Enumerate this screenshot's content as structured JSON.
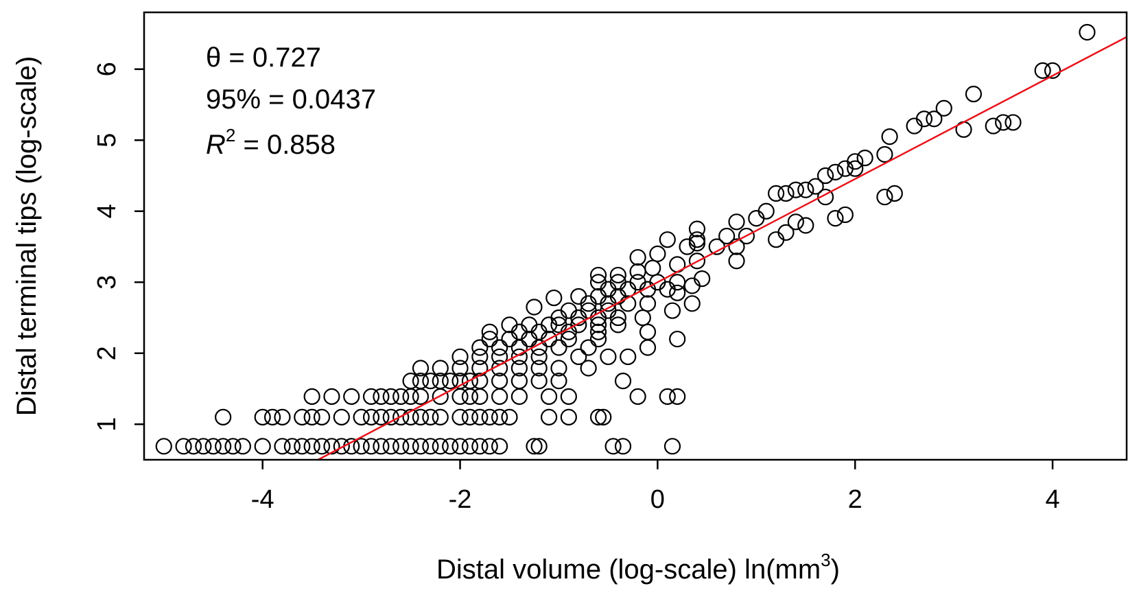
{
  "chart_data": {
    "type": "scatter",
    "title": "",
    "xlabel": "Distal volume (log-scale) ln(mm",
    "xlabel_sup": "3",
    "xlabel_close": ")",
    "ylabel": "Distal terminal tips (log-scale)",
    "xlim": [
      -5.2,
      4.75
    ],
    "ylim": [
      0.5,
      6.8
    ],
    "xticks": [
      -4,
      -2,
      0,
      2,
      4
    ],
    "yticks": [
      1,
      2,
      3,
      4,
      5,
      6
    ],
    "grid": false,
    "legend": "none",
    "annotations": {
      "theta_label": "θ = 0.727",
      "ci_label": "95% = 0.0437",
      "r2_symbol": "R",
      "r2_sup": "2",
      "r2_value": " = 0.858"
    },
    "fit_line": {
      "slope": 0.727,
      "intercept": 3.0,
      "color": "#e8141c"
    },
    "series": [
      {
        "marker": "open-circle",
        "points": [
          [
            -5.0,
            0.69
          ],
          [
            -4.8,
            0.69
          ],
          [
            -4.7,
            0.69
          ],
          [
            -4.6,
            0.69
          ],
          [
            -4.5,
            0.69
          ],
          [
            -4.4,
            0.69
          ],
          [
            -4.3,
            0.69
          ],
          [
            -4.2,
            0.69
          ],
          [
            -4.0,
            0.69
          ],
          [
            -3.8,
            0.69
          ],
          [
            -3.7,
            0.69
          ],
          [
            -3.6,
            0.69
          ],
          [
            -3.5,
            0.69
          ],
          [
            -3.4,
            0.69
          ],
          [
            -3.3,
            0.69
          ],
          [
            -3.2,
            0.69
          ],
          [
            -3.1,
            0.69
          ],
          [
            -3.0,
            0.69
          ],
          [
            -2.9,
            0.69
          ],
          [
            -2.8,
            0.69
          ],
          [
            -2.7,
            0.69
          ],
          [
            -2.6,
            0.69
          ],
          [
            -2.5,
            0.69
          ],
          [
            -2.4,
            0.69
          ],
          [
            -2.3,
            0.69
          ],
          [
            -2.2,
            0.69
          ],
          [
            -2.1,
            0.69
          ],
          [
            -2.0,
            0.69
          ],
          [
            -1.9,
            0.69
          ],
          [
            -1.8,
            0.69
          ],
          [
            -1.7,
            0.69
          ],
          [
            -1.6,
            0.69
          ],
          [
            -1.25,
            0.69
          ],
          [
            -1.2,
            0.69
          ],
          [
            -0.45,
            0.69
          ],
          [
            -0.35,
            0.69
          ],
          [
            0.15,
            0.69
          ],
          [
            -4.4,
            1.1
          ],
          [
            -4.0,
            1.1
          ],
          [
            -3.9,
            1.1
          ],
          [
            -3.8,
            1.1
          ],
          [
            -3.6,
            1.1
          ],
          [
            -3.5,
            1.1
          ],
          [
            -3.4,
            1.1
          ],
          [
            -3.2,
            1.1
          ],
          [
            -3.0,
            1.1
          ],
          [
            -2.9,
            1.1
          ],
          [
            -2.8,
            1.1
          ],
          [
            -2.7,
            1.1
          ],
          [
            -2.6,
            1.1
          ],
          [
            -2.5,
            1.1
          ],
          [
            -2.4,
            1.1
          ],
          [
            -2.3,
            1.1
          ],
          [
            -2.2,
            1.1
          ],
          [
            -2.0,
            1.1
          ],
          [
            -1.9,
            1.1
          ],
          [
            -1.8,
            1.1
          ],
          [
            -1.7,
            1.1
          ],
          [
            -1.6,
            1.1
          ],
          [
            -1.5,
            1.1
          ],
          [
            -1.1,
            1.1
          ],
          [
            -0.9,
            1.1
          ],
          [
            -0.6,
            1.1
          ],
          [
            -0.55,
            1.1
          ],
          [
            -3.5,
            1.39
          ],
          [
            -3.3,
            1.39
          ],
          [
            -3.1,
            1.39
          ],
          [
            -2.9,
            1.39
          ],
          [
            -2.8,
            1.39
          ],
          [
            -2.7,
            1.39
          ],
          [
            -2.6,
            1.39
          ],
          [
            -2.5,
            1.39
          ],
          [
            -2.4,
            1.39
          ],
          [
            -2.2,
            1.39
          ],
          [
            -2.0,
            1.39
          ],
          [
            -1.9,
            1.39
          ],
          [
            -1.8,
            1.39
          ],
          [
            -1.6,
            1.39
          ],
          [
            -1.4,
            1.39
          ],
          [
            -1.1,
            1.39
          ],
          [
            -0.9,
            1.39
          ],
          [
            -0.2,
            1.39
          ],
          [
            0.1,
            1.39
          ],
          [
            0.2,
            1.39
          ],
          [
            -2.5,
            1.61
          ],
          [
            -2.4,
            1.61
          ],
          [
            -2.3,
            1.61
          ],
          [
            -2.2,
            1.61
          ],
          [
            -2.1,
            1.61
          ],
          [
            -2.0,
            1.61
          ],
          [
            -1.9,
            1.61
          ],
          [
            -1.8,
            1.61
          ],
          [
            -1.6,
            1.61
          ],
          [
            -1.4,
            1.61
          ],
          [
            -1.2,
            1.61
          ],
          [
            -1.0,
            1.61
          ],
          [
            -0.35,
            1.61
          ],
          [
            -2.4,
            1.79
          ],
          [
            -2.2,
            1.79
          ],
          [
            -2.0,
            1.79
          ],
          [
            -1.8,
            1.79
          ],
          [
            -1.6,
            1.79
          ],
          [
            -1.4,
            1.79
          ],
          [
            -1.2,
            1.79
          ],
          [
            -1.0,
            1.79
          ],
          [
            -0.7,
            1.79
          ],
          [
            -2.0,
            1.95
          ],
          [
            -1.8,
            1.95
          ],
          [
            -1.6,
            1.95
          ],
          [
            -1.4,
            1.95
          ],
          [
            -1.2,
            1.95
          ],
          [
            -0.8,
            1.95
          ],
          [
            -0.5,
            1.95
          ],
          [
            -0.3,
            1.95
          ],
          [
            -1.8,
            2.08
          ],
          [
            -1.6,
            2.08
          ],
          [
            -1.4,
            2.08
          ],
          [
            -1.2,
            2.08
          ],
          [
            -1.0,
            2.08
          ],
          [
            -0.7,
            2.08
          ],
          [
            -0.1,
            2.08
          ],
          [
            -1.7,
            2.2
          ],
          [
            -1.5,
            2.2
          ],
          [
            -1.3,
            2.2
          ],
          [
            -1.1,
            2.2
          ],
          [
            -0.9,
            2.2
          ],
          [
            -0.6,
            2.2
          ],
          [
            0.2,
            2.2
          ],
          [
            -1.7,
            2.3
          ],
          [
            -1.4,
            2.3
          ],
          [
            -1.2,
            2.3
          ],
          [
            -0.9,
            2.3
          ],
          [
            -0.6,
            2.3
          ],
          [
            -0.1,
            2.3
          ],
          [
            -1.5,
            2.4
          ],
          [
            -1.3,
            2.4
          ],
          [
            -1.1,
            2.4
          ],
          [
            -1.0,
            2.4
          ],
          [
            -0.8,
            2.4
          ],
          [
            -0.6,
            2.4
          ],
          [
            -0.4,
            2.4
          ],
          [
            -1.0,
            2.5
          ],
          [
            -0.8,
            2.5
          ],
          [
            -0.6,
            2.5
          ],
          [
            -0.4,
            2.5
          ],
          [
            -0.15,
            2.5
          ],
          [
            -0.9,
            2.6
          ],
          [
            -0.7,
            2.6
          ],
          [
            -0.5,
            2.6
          ],
          [
            0.15,
            2.6
          ],
          [
            -1.25,
            2.65
          ],
          [
            -0.7,
            2.7
          ],
          [
            -0.5,
            2.7
          ],
          [
            -0.3,
            2.7
          ],
          [
            -0.1,
            2.7
          ],
          [
            0.35,
            2.7
          ],
          [
            -0.8,
            2.8
          ],
          [
            -0.6,
            2.8
          ],
          [
            -0.4,
            2.8
          ],
          [
            0.2,
            2.85
          ],
          [
            -1.05,
            2.78
          ],
          [
            -0.5,
            2.9
          ],
          [
            -0.3,
            2.9
          ],
          [
            -0.1,
            2.9
          ],
          [
            0.1,
            2.9
          ],
          [
            0.35,
            2.95
          ],
          [
            0.45,
            3.05
          ],
          [
            -0.6,
            3.0
          ],
          [
            -0.4,
            3.0
          ],
          [
            -0.2,
            3.0
          ],
          [
            0.0,
            3.0
          ],
          [
            0.2,
            3.0
          ],
          [
            -0.6,
            3.1
          ],
          [
            -0.4,
            3.1
          ],
          [
            -0.2,
            3.15
          ],
          [
            -0.05,
            3.2
          ],
          [
            0.2,
            3.25
          ],
          [
            0.4,
            3.3
          ],
          [
            -0.2,
            3.35
          ],
          [
            0.0,
            3.4
          ],
          [
            0.3,
            3.5
          ],
          [
            0.4,
            3.55
          ],
          [
            0.6,
            3.5
          ],
          [
            0.8,
            3.5
          ],
          [
            0.1,
            3.6
          ],
          [
            0.4,
            3.6
          ],
          [
            0.7,
            3.65
          ],
          [
            0.9,
            3.65
          ],
          [
            1.2,
            3.6
          ],
          [
            1.3,
            3.7
          ],
          [
            1.5,
            3.8
          ],
          [
            0.4,
            3.75
          ],
          [
            0.8,
            3.85
          ],
          [
            1.0,
            3.9
          ],
          [
            1.1,
            4.0
          ],
          [
            1.4,
            3.85
          ],
          [
            1.8,
            3.9
          ],
          [
            1.9,
            3.95
          ],
          [
            0.8,
            3.3
          ],
          [
            1.7,
            4.2
          ],
          [
            1.2,
            4.25
          ],
          [
            1.3,
            4.25
          ],
          [
            1.4,
            4.3
          ],
          [
            1.5,
            4.3
          ],
          [
            1.6,
            4.35
          ],
          [
            2.3,
            4.2
          ],
          [
            2.4,
            4.25
          ],
          [
            1.7,
            4.5
          ],
          [
            1.8,
            4.55
          ],
          [
            1.9,
            4.6
          ],
          [
            2.0,
            4.7
          ],
          [
            2.1,
            4.75
          ],
          [
            2.3,
            4.8
          ],
          [
            2.0,
            4.6
          ],
          [
            2.6,
            5.2
          ],
          [
            2.7,
            5.3
          ],
          [
            2.8,
            5.3
          ],
          [
            2.9,
            5.45
          ],
          [
            2.35,
            5.05
          ],
          [
            3.1,
            5.15
          ],
          [
            3.4,
            5.2
          ],
          [
            3.5,
            5.25
          ],
          [
            3.6,
            5.25
          ],
          [
            3.2,
            5.65
          ],
          [
            3.9,
            5.98
          ],
          [
            4.0,
            5.98
          ],
          [
            4.35,
            6.52
          ]
        ]
      }
    ]
  }
}
